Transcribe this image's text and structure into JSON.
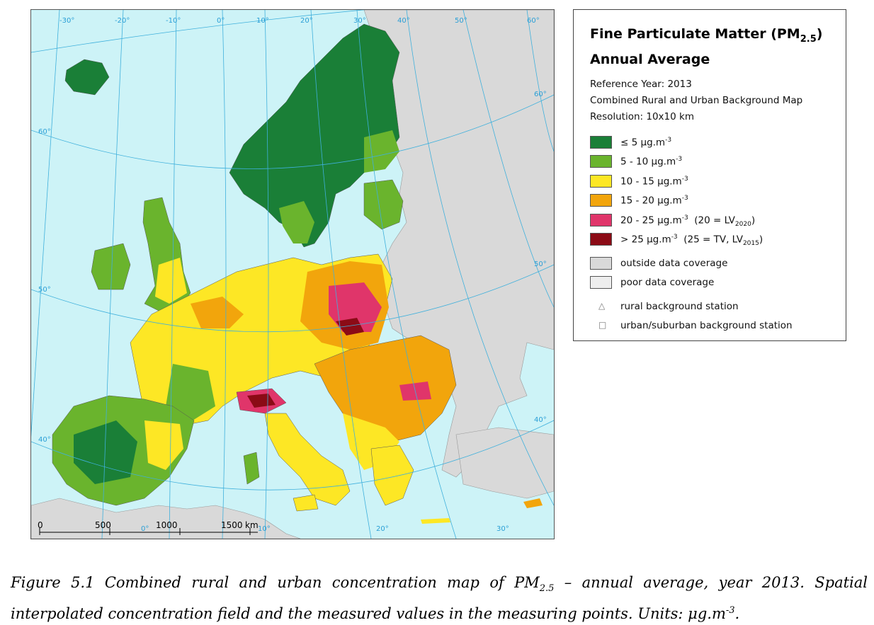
{
  "map": {
    "longitude_labels": [
      "-30°",
      "-20°",
      "-10°",
      "0°",
      "10°",
      "20°",
      "30°",
      "40°",
      "50°",
      "60°"
    ],
    "latitude_labels": [
      "60°",
      "50°",
      "40°"
    ],
    "right_latitude_labels": [
      "60°",
      "50°",
      "40°"
    ],
    "bottom_labels": [
      "0°",
      "10°",
      "20°",
      "30°"
    ],
    "scale_bar": [
      "0",
      "500",
      "1000",
      "1500",
      "km"
    ],
    "colors": {
      "sea": "#cdf3f7",
      "outside": "#d9d9d9",
      "le5": "#1a7f37",
      "5to10": "#6ab42d",
      "10to15": "#fde725",
      "15to20": "#f2a50c",
      "20to25": "#e0356a",
      "gt25": "#8b0b16",
      "poor": "#eeeeee"
    }
  },
  "legend": {
    "title_main": "Fine Particulate Matter (PM",
    "title_sub": "2.5",
    "title_close": ")",
    "title_line2": "Annual Average",
    "reference_year": "Reference Year: 2013",
    "map_type": "Combined Rural and Urban Background Map",
    "resolution": "Resolution: 10x10 km",
    "classes": [
      {
        "label": "≤ 5 μg.m",
        "sup": "-3",
        "extra": "",
        "color": "#1a7f37"
      },
      {
        "label": "5 - 10 μg.m",
        "sup": "-3",
        "extra": "",
        "color": "#6ab42d"
      },
      {
        "label": "10 - 15 μg.m",
        "sup": "-3",
        "extra": "",
        "color": "#fde725"
      },
      {
        "label": "15 - 20 μg.m",
        "sup": "-3",
        "extra": "",
        "color": "#f2a50c"
      },
      {
        "label": "20 - 25 μg.m",
        "sup": "-3",
        "extra": "(20 = LV",
        "extra_sub": "2020",
        "extra_close": ")",
        "color": "#e0356a"
      },
      {
        "label": "> 25 μg.m",
        "sup": "-3",
        "extra": "(25 = TV, LV",
        "extra_sub": "2015",
        "extra_close": ")",
        "color": "#8b0b16"
      }
    ],
    "outside": "outside data coverage",
    "poor": "poor data coverage",
    "rural": "rural background station",
    "urban": "urban/suburban background station",
    "rural_symbol": "△",
    "urban_symbol": "□"
  },
  "caption": {
    "part1": "Figure 5.1 Combined rural and urban concentration map of PM",
    "sub": "2.5",
    "part2": " – annual average, year 2013. Spatial interpolated concentration field and the measured values in the measuring points. Units: μg.m",
    "sup": "-3",
    "part3": "."
  }
}
